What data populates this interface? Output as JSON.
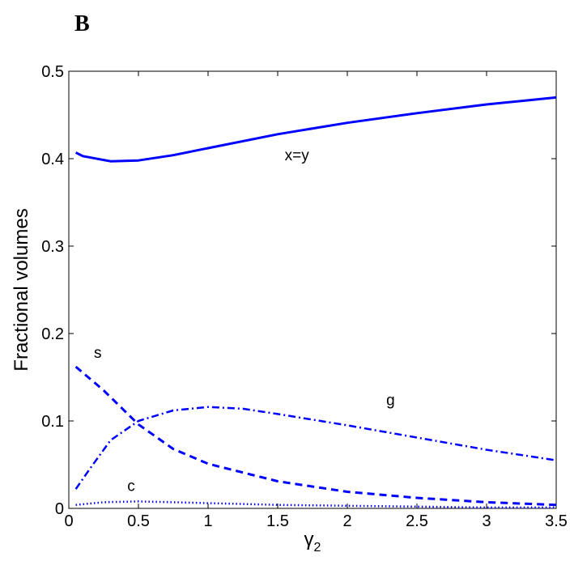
{
  "panel_label": "B",
  "chart_data": {
    "type": "line",
    "title": "",
    "xlabel": "γ",
    "xlabel_subscript": "2",
    "ylabel": "Fractional  volumes",
    "xlim": [
      0,
      3.5
    ],
    "ylim": [
      0,
      0.5
    ],
    "xticks": [
      0,
      0.5,
      1,
      1.5,
      2,
      2.5,
      3,
      3.5
    ],
    "xtick_labels": [
      "0",
      "0.5",
      "1",
      "1.5",
      "2",
      "2.5",
      "3",
      "3.5"
    ],
    "yticks": [
      0,
      0.1,
      0.2,
      0.3,
      0.4,
      0.5
    ],
    "ytick_labels": [
      "0",
      "0.1",
      "0.2",
      "0.3",
      "0.4",
      "0.5"
    ],
    "grid": false,
    "legend": "none",
    "series": [
      {
        "name": "x=y",
        "style": "solid",
        "color": "#0000ff",
        "x": [
          0.05,
          0.1,
          0.3,
          0.5,
          0.75,
          1.0,
          1.5,
          2.0,
          2.5,
          3.0,
          3.5
        ],
        "y": [
          0.407,
          0.403,
          0.397,
          0.398,
          0.404,
          0.412,
          0.428,
          0.441,
          0.452,
          0.462,
          0.47
        ]
      },
      {
        "name": "s",
        "style": "dashed",
        "color": "#0000ff",
        "x": [
          0.05,
          0.25,
          0.5,
          0.75,
          1.0,
          1.5,
          2.0,
          2.5,
          3.0,
          3.5
        ],
        "y": [
          0.162,
          0.135,
          0.096,
          0.068,
          0.051,
          0.031,
          0.019,
          0.012,
          0.007,
          0.004
        ]
      },
      {
        "name": "g",
        "style": "dashdot",
        "color": "#0000ff",
        "x": [
          0.05,
          0.15,
          0.3,
          0.5,
          0.75,
          1.0,
          1.25,
          1.5,
          2.0,
          2.5,
          3.0,
          3.5
        ],
        "y": [
          0.022,
          0.045,
          0.078,
          0.1,
          0.112,
          0.116,
          0.114,
          0.108,
          0.095,
          0.081,
          0.067,
          0.055
        ]
      },
      {
        "name": "c",
        "style": "dotted",
        "color": "#0000ff",
        "x": [
          0.05,
          0.25,
          0.5,
          0.75,
          1.0,
          1.5,
          2.0,
          2.5,
          3.0,
          3.5
        ],
        "y": [
          0.004,
          0.007,
          0.008,
          0.007,
          0.006,
          0.004,
          0.003,
          0.002,
          0.001,
          0.001
        ]
      }
    ],
    "annotations": [
      {
        "text": "x=y",
        "x": 1.55,
        "y": 0.398
      },
      {
        "text": "s",
        "x": 0.18,
        "y": 0.172
      },
      {
        "text": "g",
        "x": 2.28,
        "y": 0.118
      },
      {
        "text": "c",
        "x": 0.42,
        "y": 0.02
      }
    ]
  }
}
